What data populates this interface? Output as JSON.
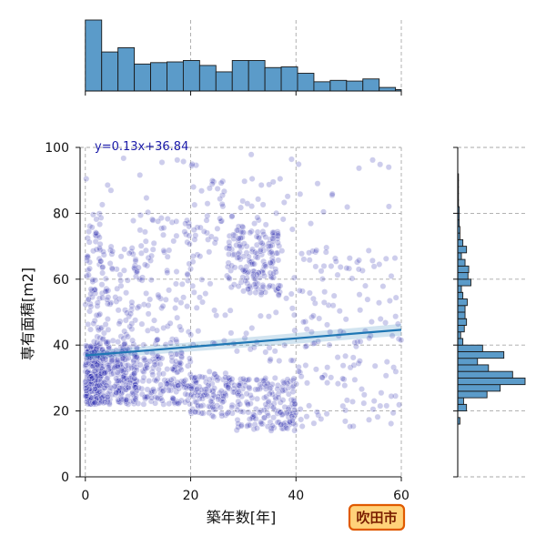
{
  "chart_data": {
    "type": "scatter",
    "subtype": "jointplot-with-regression",
    "xlabel": "築年数[年]",
    "ylabel": "専有面積[m2]",
    "xlim": [
      -1,
      60
    ],
    "ylim": [
      0,
      100
    ],
    "x_ticks": [
      0,
      20,
      40,
      60
    ],
    "y_ticks": [
      0,
      20,
      40,
      60,
      80,
      100
    ],
    "grid": true,
    "regression": {
      "slope": 0.13,
      "intercept": 36.84,
      "label": "y=0.13x+36.84",
      "color": "#1f77b4"
    },
    "point_color": "#1a1aa8",
    "hist_color": "#5b9bc9",
    "badge": {
      "text": "吹田市",
      "fill": "#ffd27a",
      "stroke": "#e05a00"
    },
    "top_hist": {
      "bin_edges": [
        0,
        3.1,
        6.2,
        9.3,
        12.4,
        15.5,
        18.6,
        21.7,
        24.8,
        27.9,
        31,
        34.1,
        37.2,
        40.3,
        43.4,
        46.5,
        49.6,
        52.7,
        55.8,
        58.9,
        62
      ],
      "counts": [
        100,
        55,
        61,
        38,
        40,
        41,
        43,
        36,
        27,
        43,
        43,
        33,
        34,
        25,
        13,
        15,
        14,
        17,
        5,
        2
      ]
    },
    "right_hist": {
      "bin_edges": [
        0,
        2,
        4,
        6,
        8,
        10,
        12,
        14,
        16,
        18,
        20,
        22,
        24,
        26,
        28,
        30,
        32,
        34,
        36,
        38,
        40,
        42,
        44,
        46,
        48,
        50,
        52,
        54,
        56,
        58,
        60,
        62,
        64,
        66,
        68,
        70,
        72,
        74,
        76,
        78,
        80,
        82,
        84,
        86,
        88,
        90,
        92,
        94,
        96,
        98,
        100
      ],
      "counts": [
        0,
        0,
        0,
        0,
        0,
        0,
        0,
        0,
        3,
        0,
        12,
        8,
        40,
        58,
        92,
        75,
        42,
        27,
        63,
        34,
        7,
        4,
        9,
        12,
        10,
        10,
        13,
        7,
        5,
        18,
        14,
        15,
        10,
        5,
        12,
        7,
        3,
        3,
        2,
        2,
        2,
        1,
        1,
        1,
        1,
        1,
        0,
        0,
        0,
        0
      ]
    },
    "clusters": [
      {
        "x": [
          0,
          3
        ],
        "y": [
          22,
          40
        ],
        "n": 260
      },
      {
        "x": [
          0,
          3
        ],
        "y": [
          40,
          80
        ],
        "n": 70
      },
      {
        "x": [
          3,
          10
        ],
        "y": [
          22,
          40
        ],
        "n": 240
      },
      {
        "x": [
          3,
          10
        ],
        "y": [
          40,
          70
        ],
        "n": 90
      },
      {
        "x": [
          10,
          20
        ],
        "y": [
          22,
          38
        ],
        "n": 150
      },
      {
        "x": [
          10,
          20
        ],
        "y": [
          40,
          80
        ],
        "n": 90
      },
      {
        "x": [
          20,
          28
        ],
        "y": [
          18,
          32
        ],
        "n": 120
      },
      {
        "x": [
          20,
          28
        ],
        "y": [
          40,
          90
        ],
        "n": 60
      },
      {
        "x": [
          28,
          40
        ],
        "y": [
          14,
          30
        ],
        "n": 180
      },
      {
        "x": [
          27,
          37
        ],
        "y": [
          55,
          75
        ],
        "n": 140
      },
      {
        "x": [
          28,
          40
        ],
        "y": [
          35,
          90
        ],
        "n": 80
      },
      {
        "x": [
          40,
          60
        ],
        "y": [
          15,
          35
        ],
        "n": 60
      },
      {
        "x": [
          40,
          60
        ],
        "y": [
          35,
          70
        ],
        "n": 90
      },
      {
        "x": [
          0,
          60
        ],
        "y": [
          75,
          98
        ],
        "n": 40
      }
    ]
  }
}
